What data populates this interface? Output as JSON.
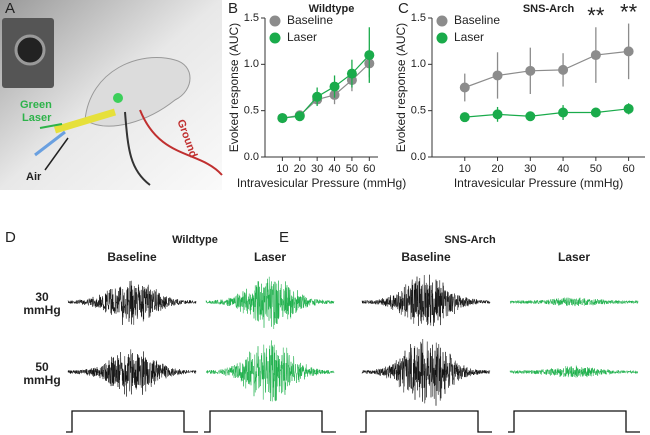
{
  "chart_data": [
    {
      "type": "line",
      "panel": "B",
      "title": "Wildtype",
      "xlabel": "Intravesicular Pressure (mmHg)",
      "ylabel": "Evoked response (AUC)",
      "x": [
        10,
        20,
        30,
        40,
        50,
        60
      ],
      "xlim": [
        0,
        65
      ],
      "xticks": [
        10,
        20,
        30,
        40,
        50,
        60
      ],
      "ylim": [
        0,
        1.5
      ],
      "yticks": [
        {
          "value": 0,
          "label": "0.0"
        },
        {
          "value": 0.5,
          "label": "0.5"
        },
        {
          "value": 1,
          "label": "1.0"
        },
        {
          "value": 1.5,
          "label": "1.5"
        }
      ],
      "legend": "upper left",
      "series": [
        {
          "name": "Baseline",
          "color": "#8c8c8c",
          "values": [
            0.42,
            0.45,
            0.62,
            0.67,
            0.83,
            1.01
          ],
          "errors": [
            0.03,
            0.03,
            0.05,
            0.1,
            0.12,
            0.15
          ]
        },
        {
          "name": "Laser",
          "color": "#1aab4b",
          "values": [
            0.42,
            0.44,
            0.65,
            0.76,
            0.9,
            1.1
          ],
          "errors": [
            0.04,
            0.04,
            0.1,
            0.12,
            0.15,
            0.3
          ]
        }
      ]
    },
    {
      "type": "line",
      "panel": "C",
      "title": "SNS-Arch",
      "xlabel": "Intravesicular Pressure (mmHg)",
      "ylabel": "Evoked response (AUC)",
      "x": [
        10,
        20,
        30,
        40,
        50,
        60
      ],
      "xlim": [
        0,
        65
      ],
      "xticks": [
        10,
        20,
        30,
        40,
        50,
        60
      ],
      "ylim": [
        0,
        1.5
      ],
      "yticks": [
        {
          "value": 0,
          "label": "0.0"
        },
        {
          "value": 0.5,
          "label": "0.5"
        },
        {
          "value": 1,
          "label": "1.0"
        },
        {
          "value": 1.5,
          "label": "1.5"
        }
      ],
      "legend": "upper left",
      "series": [
        {
          "name": "Baseline",
          "color": "#8c8c8c",
          "values": [
            0.75,
            0.88,
            0.93,
            0.94,
            1.1,
            1.14
          ],
          "errors": [
            0.15,
            0.25,
            0.25,
            0.18,
            0.3,
            0.3
          ]
        },
        {
          "name": "Laser",
          "color": "#1aab4b",
          "values": [
            0.43,
            0.46,
            0.44,
            0.48,
            0.48,
            0.52
          ],
          "errors": [
            0.03,
            0.08,
            0.04,
            0.08,
            0.05,
            0.06
          ]
        }
      ],
      "annotations": [
        {
          "text": "**",
          "x": 50
        },
        {
          "text": "**",
          "x": 60
        }
      ]
    }
  ],
  "illustration": {
    "panel": "A",
    "labels": [
      "Green",
      "Laser",
      "Air",
      "Ground"
    ]
  },
  "traces": [
    {
      "panel": "D",
      "title": "Wildtype",
      "columns": [
        "Baseline",
        "Laser"
      ]
    },
    {
      "panel": "E",
      "title": "SNS-Arch",
      "columns": [
        "Baseline",
        "Laser"
      ]
    }
  ],
  "rows": [
    [
      "30",
      "mmHg"
    ],
    [
      "50",
      "mmHg"
    ]
  ]
}
